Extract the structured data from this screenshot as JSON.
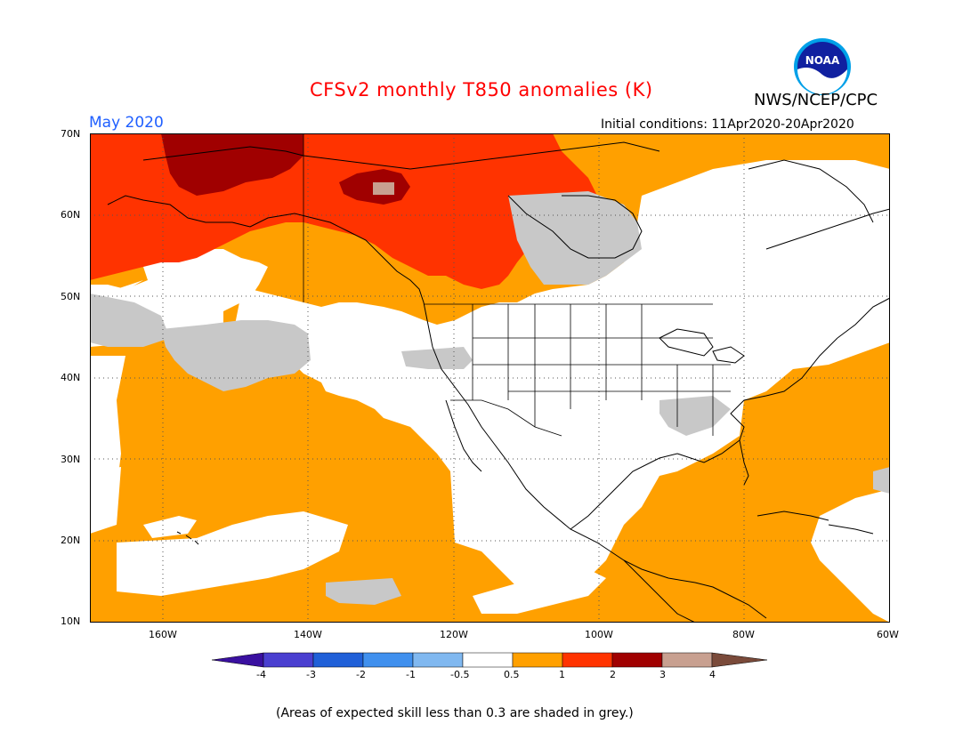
{
  "title": "CFSv2 monthly T850 anomalies (K)",
  "agency": "NWS/NCEP/CPC",
  "logo_text": "NOAA",
  "month_label": "May 2020",
  "initial_conditions": "Initial conditions: 11Apr2020-20Apr2020",
  "lat_labels": [
    "70N",
    "60N",
    "50N",
    "40N",
    "30N",
    "20N",
    "10N"
  ],
  "lon_labels": [
    "160W",
    "140W",
    "120W",
    "100W",
    "80W",
    "60W"
  ],
  "colorbar_labels": [
    "-4",
    "-3",
    "-2",
    "-1",
    "-0.5",
    "0.5",
    "1",
    "2",
    "3",
    "4"
  ],
  "colors": {
    "white": "#ffffff",
    "grey": "#c8c8c8",
    "orange": "#ffa000",
    "red": "#ff3300",
    "darkred": "#a00000",
    "tan": "#c8a090",
    "brown": "#7a4a3a",
    "cb_minus4": "#3a10a0",
    "cb_minus3": "#4a3fd0",
    "cb_minus2": "#2060d8",
    "cb_minus1": "#4090ee",
    "cb_minus05": "#80b8f0",
    "title": "#ff0000",
    "month": "#1f5fff"
  },
  "footnote": "(Areas of expected skill less than 0.3 are shaded in grey.)"
}
